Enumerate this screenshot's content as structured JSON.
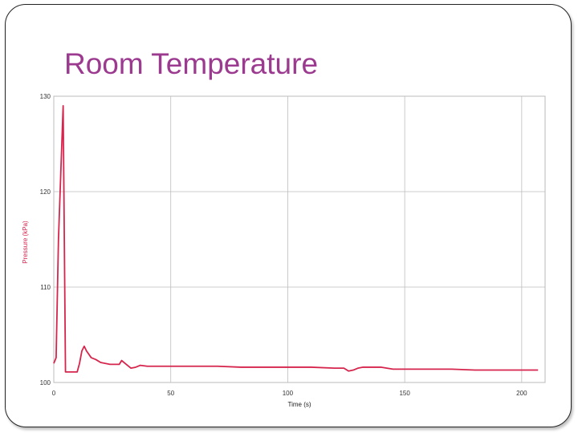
{
  "slide": {
    "title": "Room Temperature",
    "title_color": "#9b3a8f"
  },
  "chart_data": {
    "type": "line",
    "title": "",
    "xlabel": "Time (s)",
    "ylabel": "Pressure (kPa)",
    "xlabel_color": "#222222",
    "ylabel_color": "#d6254d",
    "xlim": [
      0,
      210
    ],
    "ylim": [
      100,
      130
    ],
    "xticks": [
      0,
      50,
      100,
      150,
      200
    ],
    "yticks": [
      100,
      110,
      120,
      130
    ],
    "grid": true,
    "legend": "none",
    "series": [
      {
        "color": "#d6254d",
        "x": [
          0,
          1,
          2,
          3,
          4,
          5,
          6,
          8,
          10,
          11,
          12,
          13,
          14,
          16,
          18,
          20,
          24,
          28,
          29,
          31,
          33,
          35,
          37,
          40,
          50,
          60,
          70,
          80,
          90,
          100,
          110,
          120,
          124,
          126,
          128,
          130,
          132,
          135,
          140,
          145,
          150,
          160,
          170,
          180,
          190,
          200,
          207
        ],
        "y": [
          102.0,
          102.6,
          115.0,
          122.0,
          129.0,
          101.1,
          101.1,
          101.1,
          101.1,
          102.0,
          103.3,
          103.8,
          103.3,
          102.6,
          102.4,
          102.1,
          101.9,
          101.9,
          102.3,
          101.9,
          101.5,
          101.6,
          101.8,
          101.7,
          101.7,
          101.7,
          101.7,
          101.6,
          101.6,
          101.6,
          101.6,
          101.5,
          101.5,
          101.2,
          101.3,
          101.5,
          101.6,
          101.6,
          101.6,
          101.4,
          101.4,
          101.4,
          101.4,
          101.3,
          101.3,
          101.3,
          101.3
        ]
      }
    ]
  }
}
